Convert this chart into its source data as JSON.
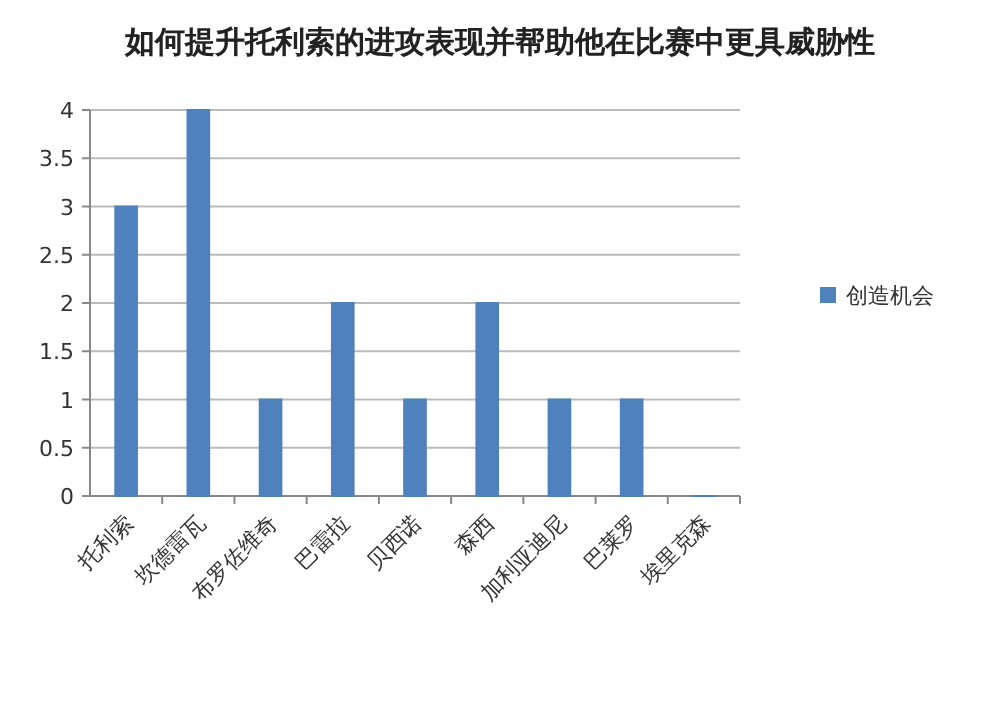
{
  "chart_data": {
    "type": "bar",
    "title": "如何提升托利索的进攻表现并帮助他在比赛中更具威胁性",
    "categories": [
      "托利索",
      "坎德雷瓦",
      "布罗佐维奇",
      "巴雷拉",
      "贝西诺",
      "森西",
      "加利亚迪尼",
      "巴莱罗",
      "埃里克森"
    ],
    "series": [
      {
        "name": "创造机会",
        "color": "#4f81bd",
        "values": [
          3,
          4,
          1,
          2,
          1,
          2,
          1,
          1,
          0
        ]
      }
    ],
    "ylim": [
      0,
      4
    ],
    "yticks": [
      0,
      0.5,
      1,
      1.5,
      2,
      2.5,
      3,
      3.5,
      4
    ],
    "grid": "y",
    "legend": "right"
  }
}
